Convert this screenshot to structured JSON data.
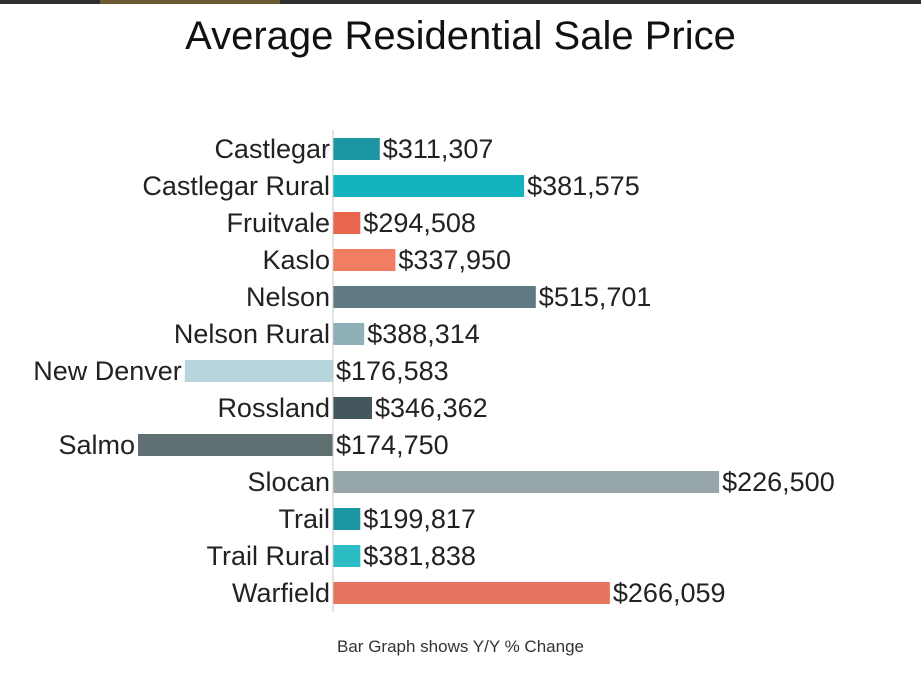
{
  "chart_data": {
    "type": "bar",
    "orientation": "horizontal-diverging",
    "title": "Average Residential Sale Price",
    "subtitle": "",
    "footnote": "Bar Graph shows Y/Y % Change",
    "categories": [
      "Castlegar",
      "Castlegar Rural",
      "Fruitvale",
      "Kaslo",
      "Nelson",
      "Nelson Rural",
      "New Denver",
      "Rossland",
      "Salmo",
      "Slocan",
      "Trail",
      "Trail Rural",
      "Warfield"
    ],
    "value_labels": [
      "$311,307",
      "$381,575",
      "$294,508",
      "$337,950",
      "$515,701",
      "$388,314",
      "$176,583",
      "$346,362",
      "$174,750",
      "$226,500",
      "$199,817",
      "$381,838",
      "$266,059"
    ],
    "pct_change": [
      12,
      49,
      7,
      16,
      52,
      8,
      -38,
      10,
      -50,
      99,
      7,
      7,
      71
    ],
    "bar_colors": [
      "#1c97a2",
      "#15b3bd",
      "#e8654e",
      "#f17e63",
      "#5f7a80",
      "#8fb0b8",
      "#b6d5dc",
      "#43575c",
      "#5f6f72",
      "#97a6ab",
      "#1c97a2",
      "#2cbcc3",
      "#e7745f"
    ],
    "xlabel": "",
    "ylabel": "",
    "grid": false,
    "legend": "none"
  }
}
